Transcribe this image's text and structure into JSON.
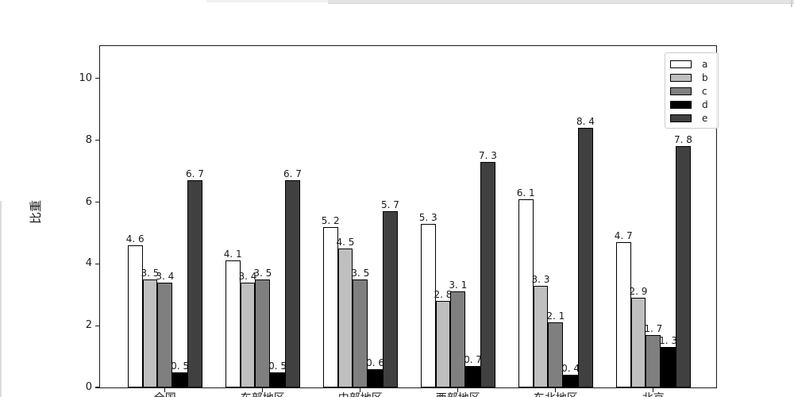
{
  "chrome": {
    "top_strip_light_color": "#f0f0f0",
    "top_strip_dark_color": "#e4e4e4",
    "right_notch_color": "#cfcfcf",
    "left_edge_line_color": "#dcdcdc"
  },
  "chart_data": {
    "type": "bar",
    "title": "",
    "ylabel": "比重",
    "xlabel": "",
    "categories": [
      "全国",
      "东部地区",
      "中部地区",
      "西部地区",
      "东北地区",
      "北京"
    ],
    "series": [
      {
        "name": "a",
        "color": "#ffffff",
        "values": [
          4.6,
          4.1,
          5.2,
          5.3,
          6.1,
          4.7
        ]
      },
      {
        "name": "b",
        "color": "#bfbfbf",
        "values": [
          3.5,
          3.4,
          4.5,
          2.8,
          3.3,
          2.9
        ]
      },
      {
        "name": "c",
        "color": "#7f7f7f",
        "values": [
          3.4,
          3.5,
          3.5,
          3.1,
          2.1,
          1.7
        ]
      },
      {
        "name": "d",
        "color": "#000000",
        "values": [
          0.5,
          0.5,
          0.6,
          0.7,
          0.4,
          1.3
        ]
      },
      {
        "name": "e",
        "color": "#404040",
        "values": [
          6.7,
          6.7,
          5.7,
          7.3,
          8.4,
          7.8
        ]
      }
    ],
    "bar_value_labels": [
      [
        "4. 6",
        "4. 1",
        "5. 2",
        "5. 3",
        "6. 1",
        "4. 7"
      ],
      [
        "3. 5",
        "3. 4",
        "4. 5",
        "2. 8",
        "3. 3",
        "2. 9"
      ],
      [
        "3. 4",
        "3. 5",
        "3. 5",
        "3. 1",
        "2. 1",
        "1. 7"
      ],
      [
        "0. 5",
        "0. 5",
        "0. 6",
        "0. 7",
        "0. 4",
        "1. 3"
      ],
      [
        "6. 7",
        "6. 7",
        "5. 7",
        "7. 3",
        "8. 4",
        "7. 8"
      ]
    ],
    "yticks": [
      0,
      2,
      4,
      6,
      8,
      10
    ],
    "ylim": [
      0,
      11.05
    ],
    "grid": false,
    "legend_position": "upper right",
    "legend_entries": [
      "a",
      "b",
      "c",
      "d",
      "e"
    ],
    "bar_edge_color": "#000000"
  }
}
